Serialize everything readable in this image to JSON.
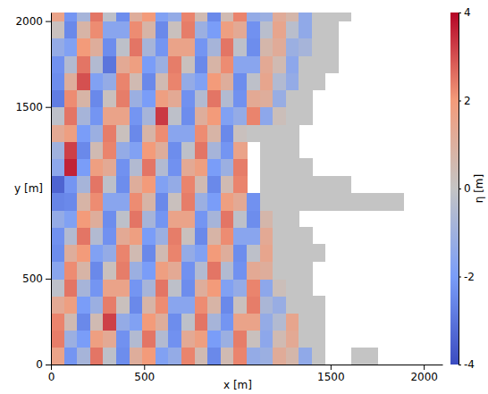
{
  "chart_data": {
    "type": "heatmap",
    "x_label": "x [m]",
    "y_label": "y [m]",
    "xlim": [
      0,
      2100
    ],
    "ylim": [
      0,
      2050
    ],
    "xticks": [
      0,
      500,
      1500,
      2000
    ],
    "yticks": [
      0,
      500,
      1500,
      2000
    ],
    "colorbar_label": "η [m]",
    "colorbar_range": [
      -4,
      4
    ],
    "colorbar_ticks": [
      -4,
      -2,
      0,
      2,
      4
    ],
    "x": [
      35,
      105,
      175,
      245,
      315,
      385,
      455,
      525,
      595,
      665,
      735,
      805,
      875,
      945,
      1015,
      1085,
      1155,
      1225,
      1295,
      1365,
      1435,
      1505,
      1575,
      1645,
      1715,
      1785,
      1855,
      1925,
      1995,
      2065
    ],
    "y": [
      50,
      150,
      250,
      350,
      450,
      550,
      650,
      750,
      850,
      950,
      1050,
      1150,
      1250,
      1350,
      1450,
      1550,
      1650,
      1750,
      1850,
      1950,
      2050
    ],
    "cells": [
      [
        1.6,
        -2.2,
        -0.8,
        2.5,
        -0.2,
        -2.4,
        1.1,
        2.0,
        -1.8,
        -1.3,
        2.3,
        0.5,
        -2.5,
        0.5,
        2.3,
        -1.3,
        -1.1,
        1.2,
        0.7,
        -1.4,
        0,
        null,
        null,
        0,
        0,
        null,
        null,
        null,
        null,
        null
      ],
      [
        2.4,
        -1.1,
        -2.0,
        1.8,
        1.3,
        -2.3,
        -0.5,
        2.5,
        -0.5,
        -2.3,
        1.3,
        1.8,
        -2.0,
        -1.1,
        2.4,
        0.2,
        -1.5,
        0.5,
        1.3,
        0,
        0,
        null,
        null,
        null,
        null,
        null,
        null,
        null,
        null,
        null
      ],
      [
        2.3,
        0.5,
        -2.5,
        0.5,
        3.2,
        -1.3,
        -1.8,
        2.0,
        1.1,
        -2.4,
        -0.2,
        2.5,
        -0.8,
        -2.2,
        1.6,
        1.6,
        -1.3,
        -0.5,
        1.5,
        0,
        0,
        null,
        null,
        null,
        null,
        null,
        null,
        null,
        null,
        null
      ],
      [
        1.3,
        1.8,
        -2.0,
        -1.1,
        2.4,
        0.2,
        -2.5,
        0.8,
        2.2,
        -1.6,
        -1.6,
        2.2,
        0.8,
        -2.5,
        0.2,
        2.4,
        -0.7,
        -1.2,
        0,
        0,
        0,
        null,
        null,
        null,
        null,
        null,
        null,
        null,
        null,
        null
      ],
      [
        -0.2,
        2.5,
        -0.8,
        -2.2,
        1.6,
        1.6,
        -2.2,
        -0.8,
        2.5,
        -0.2,
        -2.4,
        1.1,
        2.0,
        -1.8,
        -1.3,
        2.3,
        -1.5,
        0.3,
        0,
        0,
        null,
        null,
        null,
        null,
        null,
        null,
        null,
        null,
        null,
        null
      ],
      [
        -1.6,
        2.2,
        0.8,
        -2.5,
        0.2,
        2.4,
        -1.1,
        -2.0,
        1.8,
        1.3,
        -2.3,
        -0.5,
        2.5,
        -0.5,
        -2.3,
        1.3,
        1.1,
        0,
        0,
        0,
        null,
        null,
        null,
        null,
        null,
        null,
        null,
        null,
        null,
        null
      ],
      [
        -2.4,
        1.1,
        2.0,
        -1.8,
        -1.3,
        2.3,
        0.5,
        -2.5,
        0.5,
        2.3,
        -1.3,
        -1.8,
        2.0,
        1.1,
        -2.4,
        -0.2,
        1.5,
        0,
        0,
        0,
        0,
        null,
        null,
        null,
        null,
        null,
        null,
        null,
        null,
        null
      ],
      [
        -2.3,
        -0.5,
        2.5,
        -0.5,
        -2.3,
        1.3,
        1.8,
        -2.0,
        -1.1,
        2.4,
        0.2,
        -2.5,
        0.8,
        2.2,
        -1.6,
        -1.6,
        1.3,
        0,
        0,
        0,
        null,
        null,
        null,
        null,
        null,
        null,
        null,
        null,
        null,
        null
      ],
      [
        -1.3,
        -1.8,
        2.0,
        1.1,
        -2.4,
        -0.2,
        2.5,
        -0.8,
        -2.2,
        1.6,
        1.6,
        -2.2,
        -0.8,
        2.5,
        -0.2,
        -2.4,
        0.7,
        0,
        0,
        null,
        null,
        null,
        null,
        null,
        null,
        null,
        null,
        null,
        null,
        null
      ],
      [
        -2.6,
        -2.5,
        0.8,
        2.2,
        -1.6,
        -1.6,
        2.2,
        0.8,
        -2.5,
        0.2,
        2.4,
        -1.1,
        -2.0,
        1.8,
        1.3,
        -2.3,
        0,
        0,
        0,
        0,
        0,
        0,
        0,
        0,
        0,
        0,
        0,
        null,
        null,
        null
      ],
      [
        -3.4,
        -2.2,
        -0.8,
        2.5,
        -0.2,
        -2.4,
        1.1,
        2.0,
        -1.8,
        -1.3,
        2.3,
        0.5,
        -2.5,
        0.5,
        2.3,
        null,
        0,
        0,
        0,
        0,
        0,
        0,
        0,
        null,
        null,
        null,
        null,
        null,
        null,
        null
      ],
      [
        -1.5,
        3.6,
        -2.0,
        1.8,
        1.3,
        -2.3,
        -0.5,
        2.5,
        -0.5,
        -2.3,
        1.3,
        1.8,
        -2.0,
        -1.1,
        2.4,
        null,
        0,
        0,
        0,
        0,
        null,
        null,
        null,
        null,
        null,
        null,
        null,
        null,
        null,
        null
      ],
      [
        -1.0,
        3.2,
        -2.5,
        0.5,
        2.3,
        -1.3,
        -1.8,
        2.0,
        1.1,
        -2.4,
        -0.2,
        2.5,
        -0.8,
        -2.2,
        1.6,
        null,
        0,
        0,
        0,
        null,
        null,
        null,
        null,
        null,
        null,
        null,
        null,
        null,
        null,
        null
      ],
      [
        1.3,
        1.8,
        -2.0,
        -1.1,
        2.4,
        0.2,
        -2.5,
        0.8,
        2.2,
        -1.6,
        -1.6,
        2.2,
        0.8,
        -2.5,
        0.2,
        0,
        0,
        0,
        0,
        null,
        null,
        null,
        null,
        null,
        null,
        null,
        null,
        null,
        null,
        null
      ],
      [
        -0.2,
        2.5,
        -0.8,
        -2.2,
        1.6,
        1.6,
        -2.2,
        -0.8,
        3.3,
        -0.2,
        -2.4,
        1.1,
        2.0,
        -1.8,
        -1.3,
        2.3,
        -1.5,
        0.3,
        0,
        0,
        null,
        null,
        null,
        null,
        null,
        null,
        null,
        null,
        null,
        null
      ],
      [
        -2.8,
        2.2,
        0.8,
        -2.5,
        0.2,
        2.4,
        -1.1,
        -2.0,
        1.8,
        1.3,
        -2.3,
        -0.5,
        2.5,
        -0.5,
        -2.3,
        1.3,
        1.1,
        -1.2,
        0,
        0,
        null,
        null,
        null,
        null,
        null,
        null,
        null,
        null,
        null,
        null
      ],
      [
        -2.4,
        1.1,
        3.0,
        -1.8,
        -1.3,
        2.3,
        0.5,
        -2.5,
        0.5,
        2.3,
        -1.3,
        -1.8,
        2.0,
        1.1,
        -2.4,
        -0.2,
        1.5,
        -0.5,
        -1.3,
        0,
        0,
        null,
        null,
        null,
        null,
        null,
        null,
        null,
        null,
        null
      ],
      [
        -2.3,
        -0.5,
        2.5,
        -0.5,
        -3.0,
        1.3,
        1.8,
        -2.0,
        -1.1,
        2.4,
        0.2,
        -2.5,
        0.8,
        2.2,
        -1.6,
        -1.6,
        1.3,
        0.5,
        -1.5,
        0,
        0,
        0,
        null,
        null,
        null,
        null,
        null,
        null,
        null,
        null
      ],
      [
        -1.3,
        -1.8,
        2.0,
        1.1,
        -2.4,
        -0.2,
        2.5,
        -0.8,
        -2.2,
        1.6,
        1.6,
        -2.2,
        -0.8,
        2.5,
        -0.2,
        -2.4,
        0.7,
        1.2,
        -1.1,
        -0.8,
        0,
        0,
        null,
        null,
        null,
        null,
        null,
        null,
        null,
        null
      ],
      [
        0.2,
        -2.5,
        0.8,
        2.2,
        -1.6,
        -1.6,
        2.2,
        0.8,
        -2.5,
        0.2,
        2.4,
        -1.1,
        -2.0,
        1.8,
        1.3,
        -2.3,
        -0.3,
        1.5,
        -0.3,
        -1.4,
        0,
        0,
        null,
        null,
        null,
        null,
        null,
        null,
        null,
        null
      ],
      [
        1.6,
        -2.2,
        -0.8,
        2.5,
        -0.2,
        -2.4,
        1.1,
        2.0,
        -1.8,
        -1.3,
        2.3,
        0.5,
        -2.5,
        0.5,
        2.3,
        -1.3,
        -1.1,
        1.2,
        0.7,
        -1.4,
        0,
        0,
        0,
        null,
        null,
        null,
        null,
        null,
        null,
        null
      ]
    ]
  }
}
